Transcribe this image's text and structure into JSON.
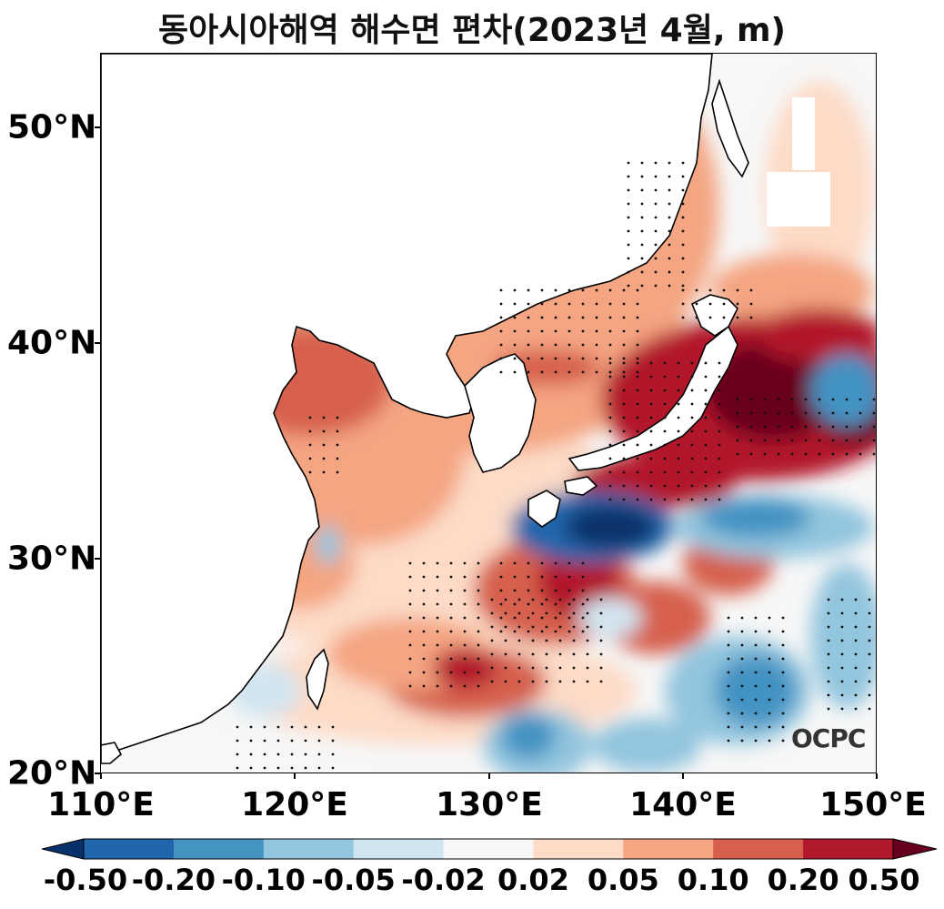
{
  "title": "동아시아해역 해수면 편차(2023년 4월, m)",
  "axes": {
    "y_ticks": [
      "50°N",
      "40°N",
      "30°N",
      "20°N"
    ],
    "x_ticks": [
      "110°E",
      "120°E",
      "130°E",
      "140°E",
      "150°E"
    ],
    "lon_range": [
      110,
      150
    ],
    "lat_range": [
      20,
      53.5
    ]
  },
  "colorbar": {
    "labels": [
      "-0.50",
      "-0.20",
      "-0.10",
      "-0.05",
      "-0.02",
      "0.02",
      "0.05",
      "0.10",
      "0.20",
      "0.50"
    ],
    "colors": [
      "#08306b",
      "#2166ac",
      "#4393c3",
      "#92c5de",
      "#d1e5f0",
      "#f7f7f7",
      "#fddbc7",
      "#f4a582",
      "#d6604d",
      "#b2182b",
      "#67001f"
    ],
    "extend": "both"
  },
  "logo": "OCPC"
}
